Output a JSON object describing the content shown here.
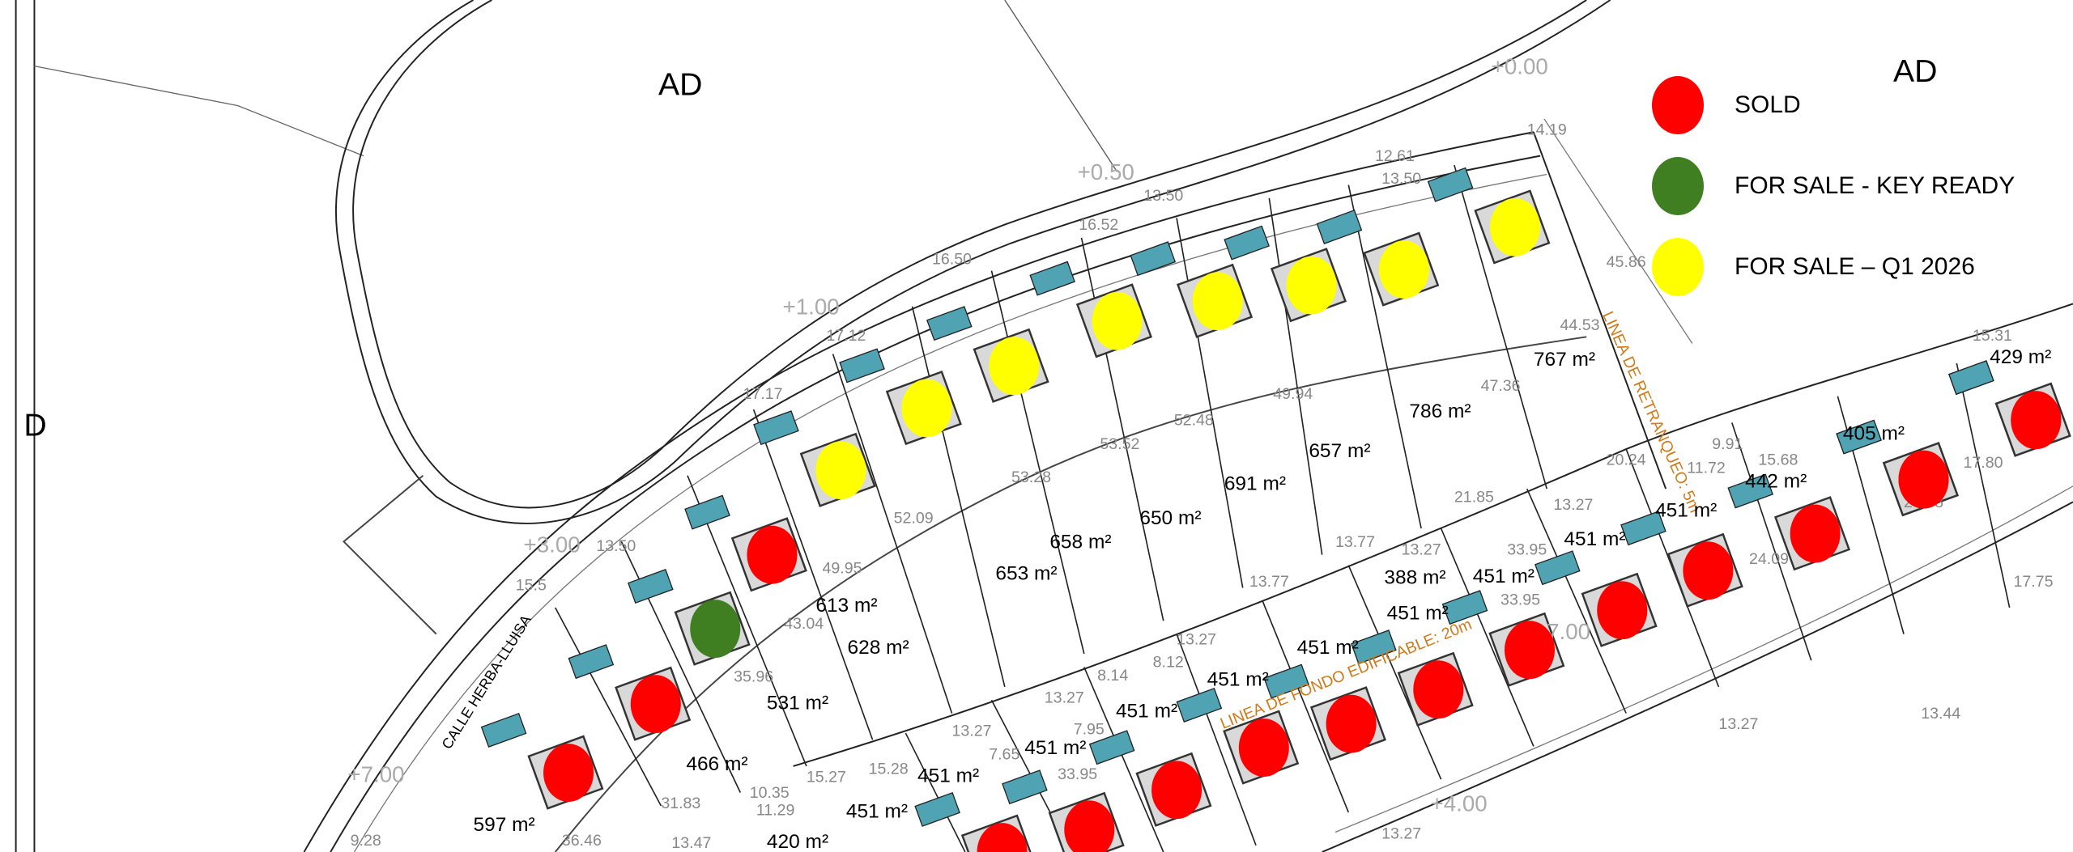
{
  "legend": [
    {
      "label": "SOLD",
      "color": "#ff0000"
    },
    {
      "label": "FOR SALE - KEY READY",
      "color": "#3f7f22"
    },
    {
      "label": "FOR SALE – Q1 2026",
      "color": "#ffff00"
    }
  ],
  "zones": [
    "AD",
    "AD",
    "D"
  ],
  "street_name": "CALLE HERBA-LLUISA",
  "setback_line": "LINEA DE RETRANQUEO: 5m",
  "building_depth_line": "LINEA DE FONDO EDIFICABLE: 20m",
  "elevations": [
    "+0.00",
    "+0.50",
    "+1.00",
    "+3.00",
    "+7.00",
    "+4.00",
    "+7.00"
  ],
  "plot_areas": [
    "767 m²",
    "786 m²",
    "657 m²",
    "691 m²",
    "650 m²",
    "658 m²",
    "653 m²",
    "613 m²",
    "628 m²",
    "531 m²",
    "466 m²",
    "597 m²",
    "420 m²",
    "451 m²",
    "451 m²",
    "451 m²",
    "451 m²",
    "451 m²",
    "451 m²",
    "451 m²",
    "451 m²",
    "451 m²",
    "451 m²",
    "442 m²",
    "405 m²",
    "429 m²",
    "388 m²"
  ],
  "dimensions": [
    "14.19",
    "13.50",
    "12.61",
    "13.50",
    "16.52",
    "16.50",
    "17.12",
    "17.17",
    "13.50",
    "45.86",
    "44.53",
    "47.36",
    "49.94",
    "52.48",
    "53.52",
    "53.28",
    "52.09",
    "49.95",
    "43.04",
    "35.96",
    "31.83",
    "36.46",
    "13.47",
    "10.35",
    "11.29",
    "15.27",
    "15.28",
    "13.27",
    "13.27",
    "7.65",
    "7.95",
    "8.14",
    "8.12",
    "13.27",
    "13.77",
    "13.77",
    "13.27",
    "21.85",
    "20.24",
    "11.72",
    "9.91",
    "15.68",
    "17.80",
    "15.31",
    "13.27",
    "33.95",
    "33.95",
    "33.95",
    "24.09",
    "24.38",
    "17.75",
    "13.44",
    "13.27",
    "13.27",
    "9.28",
    "15.5"
  ],
  "markers": [
    "yellow",
    "yellow",
    "yellow",
    "yellow",
    "yellow",
    "yellow",
    "yellow",
    "yellow",
    "red",
    "red",
    "red",
    "red",
    "red",
    "red",
    "red",
    "red",
    "red",
    "red",
    "red",
    "red",
    "red",
    "red",
    "red",
    "red",
    "red",
    "green"
  ],
  "colors": {
    "sold": "#ff0000",
    "key_ready": "#3f7f22",
    "q1_2026": "#ffff00",
    "pool": "#4fa3b3",
    "house": "#d9d9d9"
  }
}
